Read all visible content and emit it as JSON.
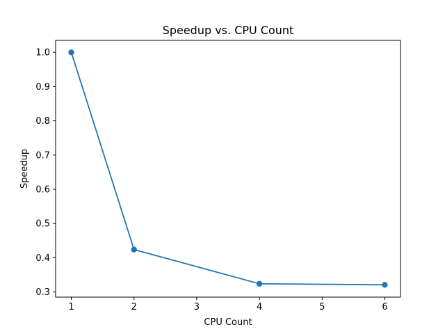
{
  "chart_data": {
    "type": "line",
    "title": "Speedup vs. CPU Count",
    "xlabel": "CPU Count",
    "ylabel": "Speedup",
    "xlim": [
      0.75,
      6.25
    ],
    "ylim": [
      0.285,
      1.035
    ],
    "xticks": [
      1,
      2,
      3,
      4,
      5,
      6
    ],
    "yticks": [
      0.3,
      0.4,
      0.5,
      0.6,
      0.7,
      0.8,
      0.9,
      1.0
    ],
    "ytick_labels": [
      "0.3",
      "0.4",
      "0.5",
      "0.6",
      "0.7",
      "0.8",
      "0.9",
      "1.0"
    ],
    "grid": false,
    "series": [
      {
        "color": "#1f77b4",
        "marker": "circle",
        "x": [
          1,
          2,
          4,
          6
        ],
        "y": [
          1.0,
          0.424,
          0.324,
          0.321
        ]
      }
    ]
  }
}
